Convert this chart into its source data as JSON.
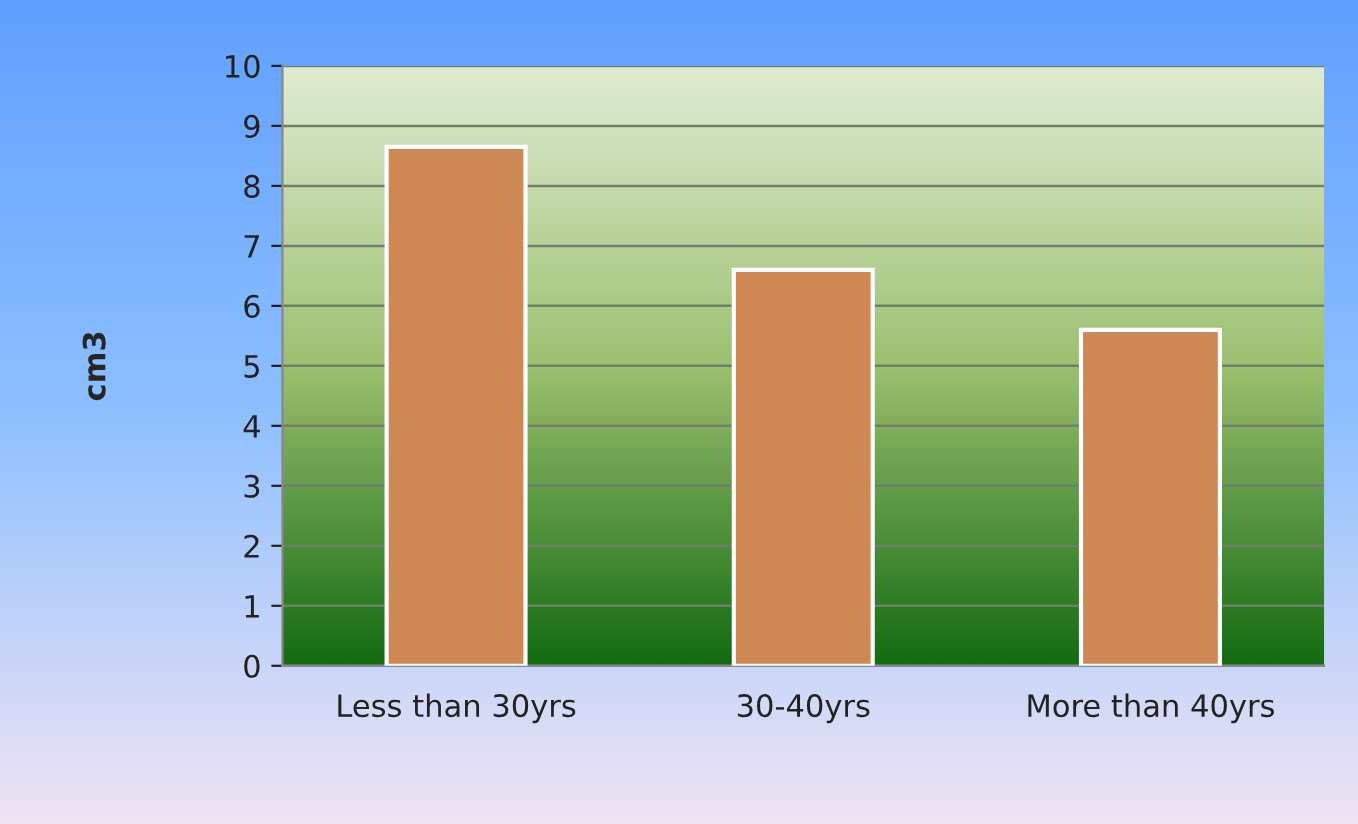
{
  "chart_data": {
    "type": "bar",
    "ylabel": "cm3",
    "categories": [
      "Less than 30yrs",
      "30-40yrs",
      "More than 40yrs"
    ],
    "values": [
      8.65,
      6.6,
      5.6
    ],
    "color": "#cd8853",
    "ylim": [
      0,
      10
    ],
    "yticks": [
      0,
      1,
      2,
      3,
      4,
      5,
      6,
      7,
      8,
      9,
      10
    ],
    "grid": "y",
    "legend": false
  }
}
